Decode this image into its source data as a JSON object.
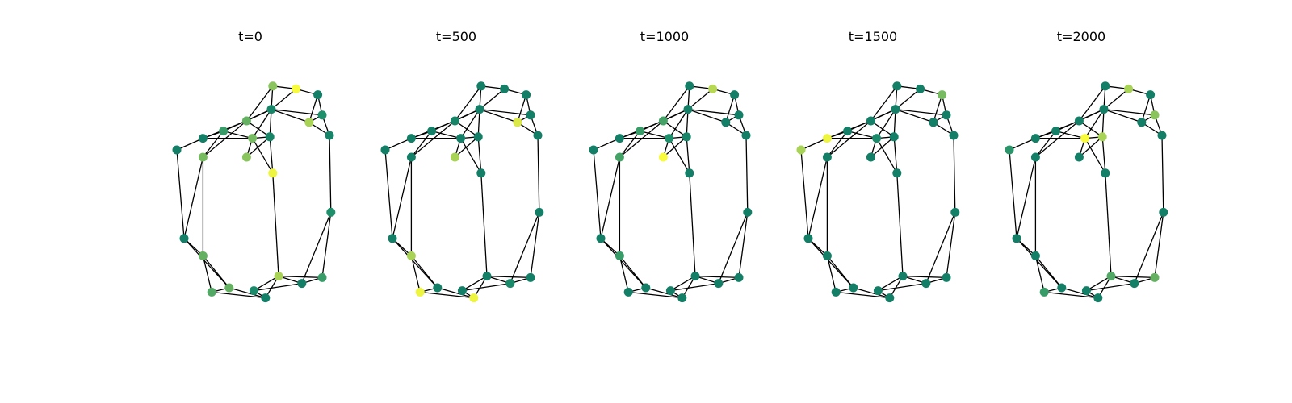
{
  "panels": [
    {
      "title": "t=0",
      "levels": [
        0.55,
        1,
        0.05,
        0.2,
        0.45,
        0.1,
        0.65,
        0.1,
        0.3,
        0.05,
        0.5,
        0.1,
        0.55,
        0.05,
        0.5,
        0.95,
        0.2,
        0.05,
        0.45,
        0.65,
        0.3,
        0.05,
        0.45,
        0.15,
        0.4,
        0.05
      ]
    },
    {
      "title": "t=500",
      "levels": [
        0.05,
        0.05,
        0.05,
        0.05,
        0.1,
        0.05,
        0.85,
        0.05,
        0.05,
        0.05,
        0.05,
        0.05,
        0.65,
        0.05,
        0.05,
        0.05,
        0.05,
        0.05,
        0.65,
        0.05,
        0.05,
        0.15,
        0.05,
        0.05,
        0.95,
        0.95
      ]
    },
    {
      "title": "t=1000",
      "levels": [
        0.05,
        0.7,
        0.05,
        0.05,
        0.35,
        0.05,
        0.05,
        0.05,
        0.3,
        0.05,
        0.2,
        0.1,
        1,
        0.05,
        0.35,
        0.05,
        0.05,
        0.05,
        0.3,
        0.05,
        0.05,
        0.05,
        0.05,
        0.05,
        0.05,
        0.05
      ]
    },
    {
      "title": "t=1500",
      "levels": [
        0.05,
        0.05,
        0.5,
        0.05,
        0.05,
        0.05,
        0.05,
        0.05,
        0.05,
        0.95,
        0.15,
        0.05,
        0.05,
        0.65,
        0.05,
        0.05,
        0.05,
        0.05,
        0.05,
        0.05,
        0.05,
        0.05,
        0.05,
        0.05,
        0.05,
        0.05
      ]
    },
    {
      "title": "t=2000",
      "levels": [
        0.05,
        0.65,
        0.05,
        0.55,
        0.05,
        0.05,
        0.05,
        0.05,
        0.05,
        0.05,
        1,
        0.65,
        0.05,
        0.25,
        0.05,
        0.05,
        0.05,
        0.05,
        0.05,
        0.4,
        0.45,
        0.05,
        0.05,
        0.05,
        0.3,
        0.05
      ]
    }
  ],
  "graph": {
    "nodes": [
      [
        0.66,
        0.94
      ],
      [
        0.82,
        0.92
      ],
      [
        0.97,
        0.88
      ],
      [
        1.0,
        0.74
      ],
      [
        0.48,
        0.7
      ],
      [
        0.65,
        0.78
      ],
      [
        0.91,
        0.69
      ],
      [
        1.05,
        0.6
      ],
      [
        0.32,
        0.63
      ],
      [
        0.18,
        0.58
      ],
      [
        0.52,
        0.58
      ],
      [
        0.64,
        0.59
      ],
      [
        0.48,
        0.45
      ],
      [
        0.0,
        0.5
      ],
      [
        0.18,
        0.45
      ],
      [
        0.66,
        0.34
      ],
      [
        1.06,
        0.07
      ],
      [
        0.05,
        -0.11
      ],
      [
        0.18,
        -0.23
      ],
      [
        0.7,
        -0.37
      ],
      [
        1.0,
        -0.38
      ],
      [
        0.86,
        -0.42
      ],
      [
        0.36,
        -0.45
      ],
      [
        0.53,
        -0.47
      ],
      [
        0.24,
        -0.48
      ],
      [
        0.61,
        -0.52
      ]
    ],
    "edges": [
      [
        0,
        1
      ],
      [
        0,
        5
      ],
      [
        0,
        4
      ],
      [
        1,
        2
      ],
      [
        1,
        5
      ],
      [
        2,
        3
      ],
      [
        3,
        7
      ],
      [
        3,
        6
      ],
      [
        3,
        5
      ],
      [
        4,
        5
      ],
      [
        5,
        6
      ],
      [
        6,
        7
      ],
      [
        6,
        2
      ],
      [
        7,
        16
      ],
      [
        16,
        20
      ],
      [
        16,
        21
      ],
      [
        5,
        10
      ],
      [
        5,
        11
      ],
      [
        5,
        8
      ],
      [
        4,
        9
      ],
      [
        4,
        14
      ],
      [
        4,
        11
      ],
      [
        8,
        9
      ],
      [
        8,
        10
      ],
      [
        8,
        14
      ],
      [
        9,
        10
      ],
      [
        9,
        13
      ],
      [
        10,
        11
      ],
      [
        10,
        12
      ],
      [
        10,
        15
      ],
      [
        11,
        12
      ],
      [
        11,
        15
      ],
      [
        13,
        17
      ],
      [
        14,
        17
      ],
      [
        14,
        18
      ],
      [
        17,
        18
      ],
      [
        17,
        22
      ],
      [
        18,
        22
      ],
      [
        18,
        24
      ],
      [
        22,
        24
      ],
      [
        22,
        25
      ],
      [
        24,
        25
      ],
      [
        15,
        19
      ],
      [
        19,
        25
      ],
      [
        19,
        23
      ],
      [
        19,
        20
      ],
      [
        19,
        21
      ],
      [
        20,
        21
      ],
      [
        21,
        23
      ],
      [
        23,
        25
      ]
    ]
  },
  "colormap": [
    "#117a65",
    "#1d8f6b",
    "#52a865",
    "#9bcd5a",
    "#d0e34a",
    "#f8fb3c"
  ]
}
